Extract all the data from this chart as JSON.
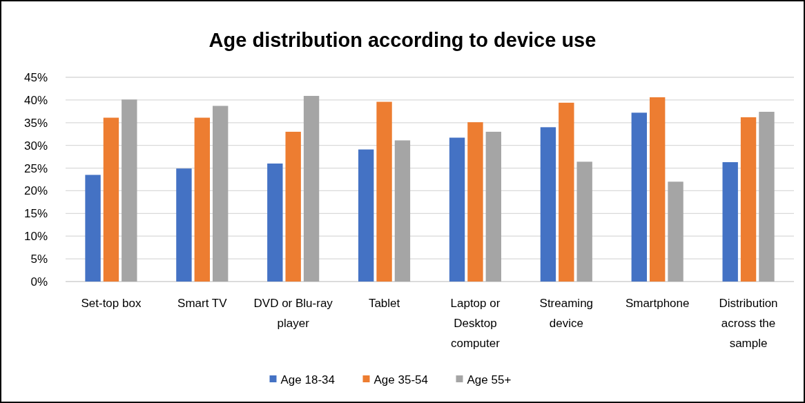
{
  "chart_data": {
    "type": "bar",
    "title": "Age distribution according to device use",
    "categories": [
      "Set-top box",
      "Smart TV",
      "DVD or Blu-ray player",
      "Tablet",
      "Laptop or Desktop computer",
      "Streaming device",
      "Smartphone",
      "Distribution across the sample"
    ],
    "series": [
      {
        "name": "Age 18-34",
        "color": "#4472c4",
        "values": [
          23.5,
          24.9,
          26.0,
          29.1,
          31.7,
          34.0,
          37.2,
          26.3
        ]
      },
      {
        "name": "Age 35-54",
        "color": "#ed7d31",
        "values": [
          36.1,
          36.1,
          33.0,
          39.6,
          35.1,
          39.4,
          40.6,
          36.2
        ]
      },
      {
        "name": "Age 55+",
        "color": "#a5a5a5",
        "values": [
          40.1,
          38.7,
          40.9,
          31.1,
          33.0,
          26.4,
          22.0,
          37.4
        ]
      }
    ],
    "ylim": [
      0,
      45
    ],
    "yticks": [
      {
        "value": 0,
        "label": "0%"
      },
      {
        "value": 5,
        "label": "5%"
      },
      {
        "value": 10,
        "label": "10%"
      },
      {
        "value": 15,
        "label": "15%"
      },
      {
        "value": 20,
        "label": "20%"
      },
      {
        "value": 25,
        "label": "25%"
      },
      {
        "value": 30,
        "label": "30%"
      },
      {
        "value": 35,
        "label": "35%"
      },
      {
        "value": 40,
        "label": "40%"
      },
      {
        "value": 45,
        "label": "45%"
      }
    ],
    "grid": "y",
    "legend": "bottom"
  }
}
